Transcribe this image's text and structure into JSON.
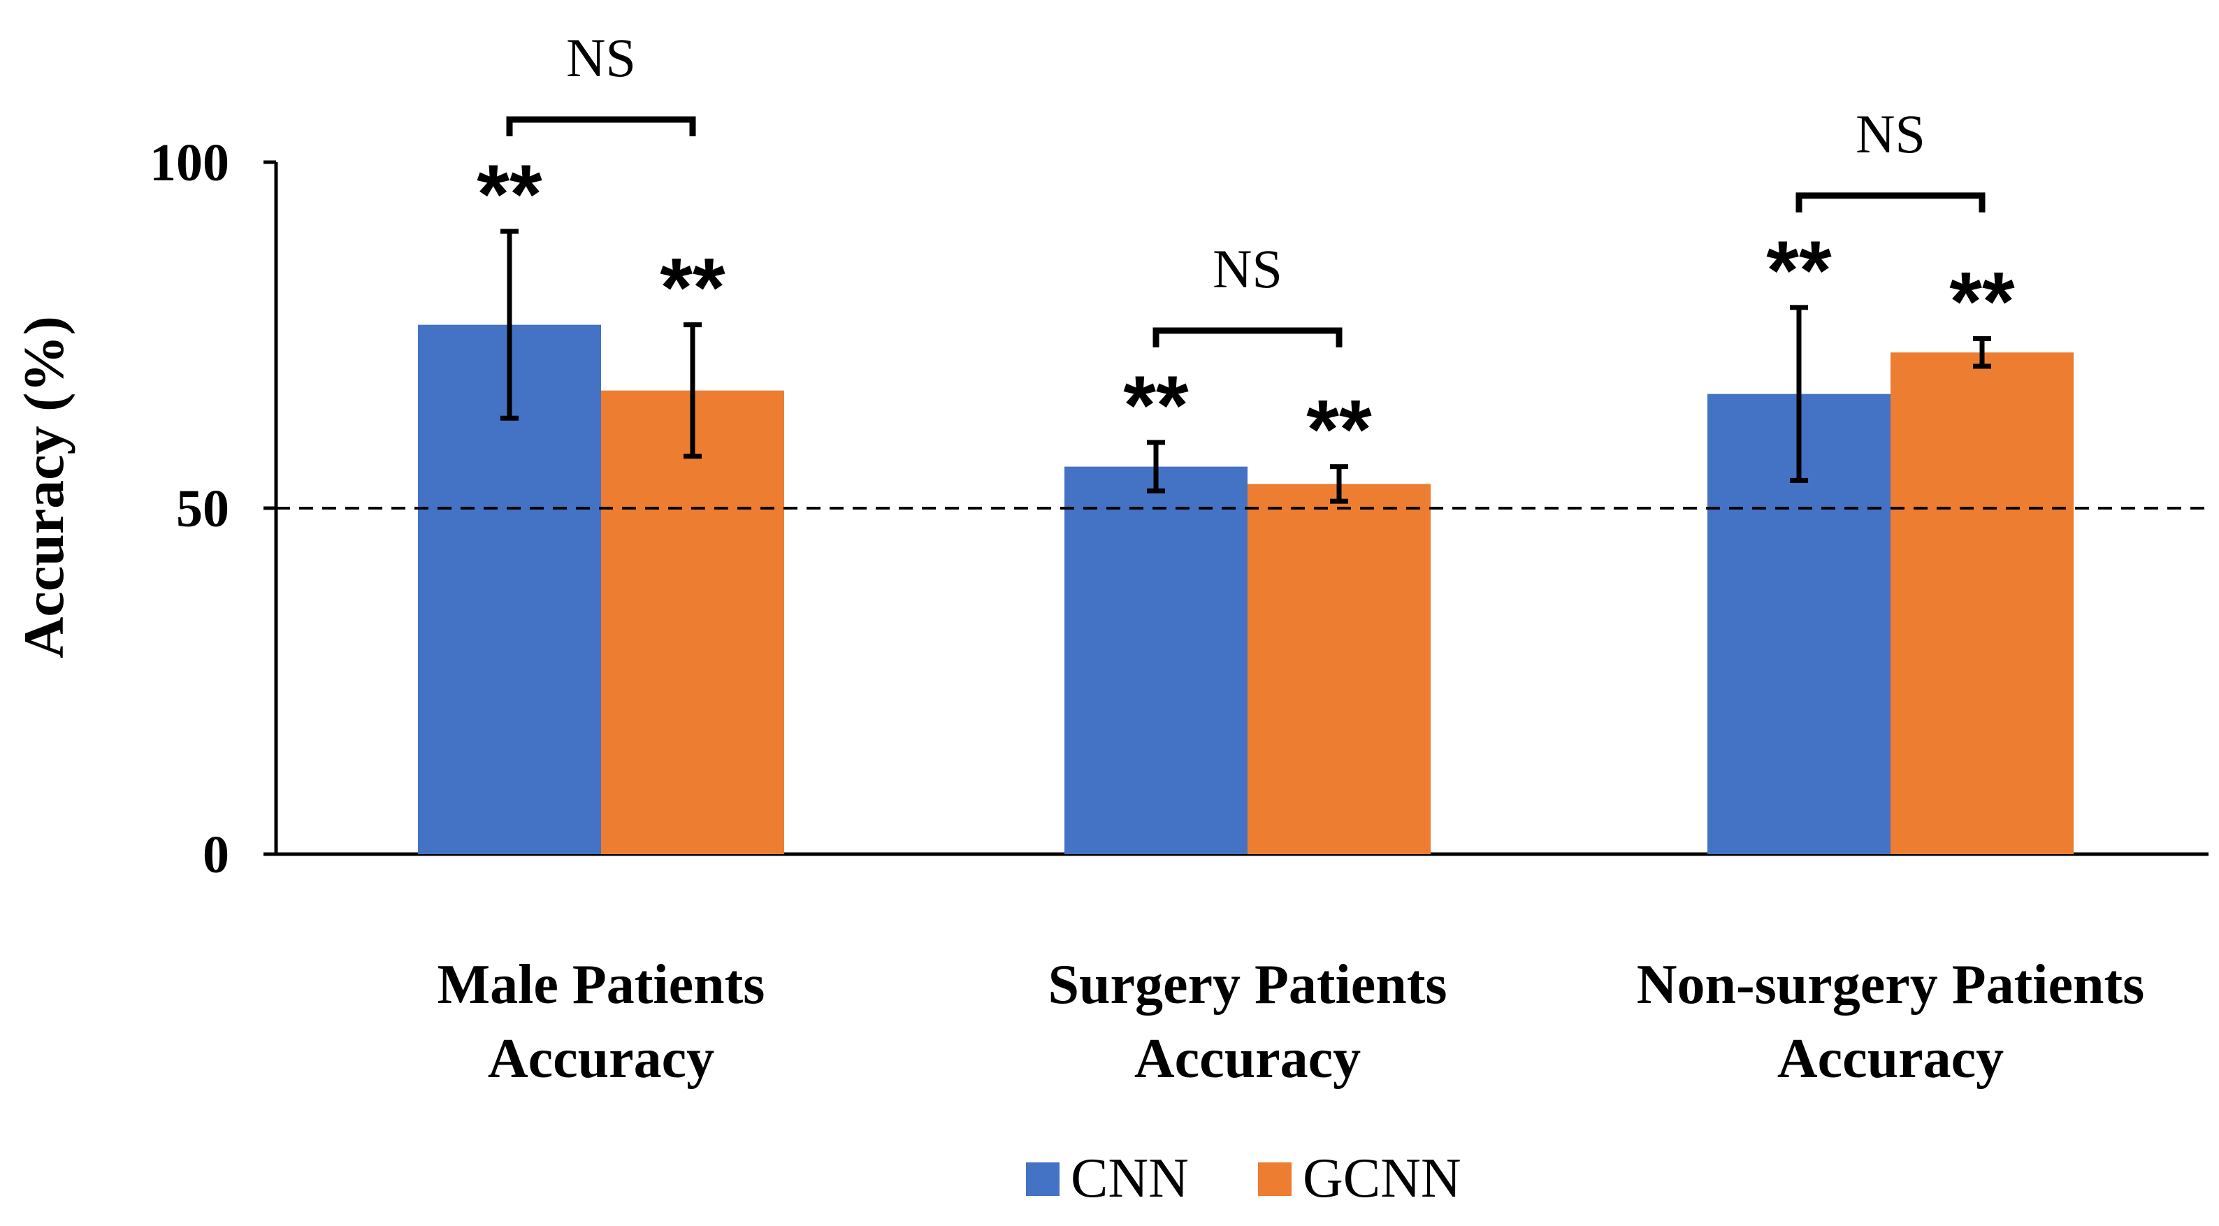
{
  "chart_data": {
    "type": "bar",
    "title": "",
    "xlabel": "",
    "ylabel": "Accuracy (%)",
    "ylim": [
      0,
      100
    ],
    "yticks": [
      0,
      50,
      100
    ],
    "yticks_text": [
      "0",
      "50",
      "100"
    ],
    "grid": false,
    "categories": [
      [
        "Male Patients",
        "Accuracy"
      ],
      [
        "Surgery Patients",
        "Accuracy"
      ],
      [
        "Non-surgery Patients",
        "Accuracy"
      ]
    ],
    "series": [
      {
        "name": "CNN",
        "color": "#4472C4",
        "values": [
          76.5,
          56.0,
          66.5
        ],
        "error": [
          13.5,
          3.5,
          12.5
        ],
        "significance": [
          "**",
          "**",
          "**"
        ]
      },
      {
        "name": "GCNN",
        "color": "#ED7D31",
        "values": [
          67.0,
          53.5,
          72.5
        ],
        "error": [
          9.5,
          2.5,
          2.0
        ],
        "significance": [
          "**",
          "**",
          "**"
        ]
      }
    ],
    "reference_line": {
      "value": 50,
      "style": "dashed"
    },
    "comparisons": [
      {
        "category": 0,
        "label": "NS"
      },
      {
        "category": 1,
        "label": "NS"
      },
      {
        "category": 2,
        "label": "NS"
      }
    ],
    "legend": {
      "position": "bottom-center"
    }
  }
}
